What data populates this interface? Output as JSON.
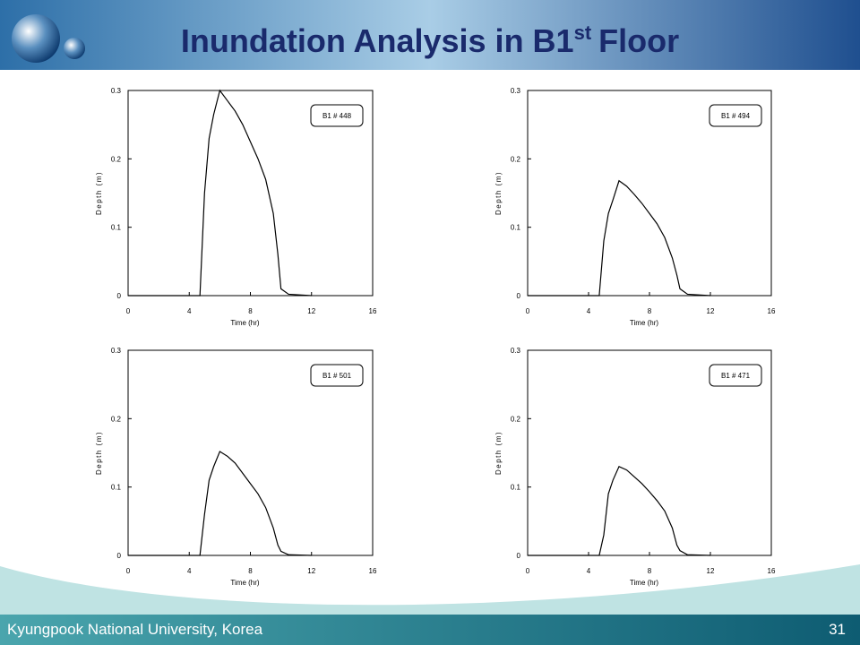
{
  "header": {
    "title": "Inundation Analysis in B1",
    "title_sup": "st",
    "title_end": "Floor"
  },
  "footer": {
    "text": "Kyungpook National University, Korea",
    "page": "31"
  },
  "chart_data": [
    {
      "type": "line",
      "x_label": "Time (hr)",
      "y_label": "Depth (m)",
      "x": [
        0,
        4.7,
        5,
        5.3,
        5.6,
        6,
        6.5,
        7,
        7.5,
        8,
        8.5,
        9,
        9.5,
        9.8,
        10,
        10.5,
        12
      ],
      "series": [
        {
          "name": "B1 # 448",
          "color": "#000000",
          "values": [
            0,
            0,
            0.15,
            0.23,
            0.265,
            0.3,
            0.285,
            0.27,
            0.25,
            0.225,
            0.2,
            0.17,
            0.12,
            0.06,
            0.01,
            0.002,
            0
          ]
        }
      ],
      "xlim": [
        0,
        16
      ],
      "xticks": [
        0,
        4,
        8,
        12,
        16
      ],
      "ylim": [
        0,
        0.3
      ],
      "yticks": [
        0,
        0.1,
        0.2,
        0.3
      ]
    },
    {
      "type": "line",
      "x_label": "Time (hr)",
      "y_label": "Depth (m)",
      "x": [
        0,
        4.7,
        5,
        5.3,
        5.6,
        6,
        6.5,
        7,
        7.5,
        8,
        8.5,
        9,
        9.5,
        9.8,
        10,
        10.5,
        12
      ],
      "series": [
        {
          "name": "B1 # 494",
          "color": "#000000",
          "values": [
            0,
            0,
            0.08,
            0.12,
            0.14,
            0.168,
            0.16,
            0.148,
            0.135,
            0.12,
            0.105,
            0.085,
            0.055,
            0.03,
            0.01,
            0.002,
            0
          ]
        }
      ],
      "xlim": [
        0,
        16
      ],
      "xticks": [
        0,
        4,
        8,
        12,
        16
      ],
      "ylim": [
        0,
        0.3
      ],
      "yticks": [
        0,
        0.1,
        0.2,
        0.3
      ]
    },
    {
      "type": "line",
      "x_label": "Time (hr)",
      "y_label": "Depth (m)",
      "x": [
        0,
        4.7,
        5,
        5.3,
        5.6,
        6,
        6.5,
        7,
        7.5,
        8,
        8.5,
        9,
        9.5,
        9.8,
        10,
        10.5,
        12
      ],
      "series": [
        {
          "name": "B1 # 501",
          "color": "#000000",
          "values": [
            0,
            0,
            0.06,
            0.11,
            0.13,
            0.152,
            0.145,
            0.135,
            0.12,
            0.105,
            0.09,
            0.07,
            0.04,
            0.015,
            0.006,
            0.001,
            0
          ]
        }
      ],
      "xlim": [
        0,
        16
      ],
      "xticks": [
        0,
        4,
        8,
        12,
        16
      ],
      "ylim": [
        0,
        0.3
      ],
      "yticks": [
        0,
        0.1,
        0.2,
        0.3
      ]
    },
    {
      "type": "line",
      "x_label": "Time (hr)",
      "y_label": "Depth (m)",
      "x": [
        0,
        4.7,
        5,
        5.3,
        5.6,
        6,
        6.5,
        7,
        7.5,
        8,
        8.5,
        9,
        9.5,
        9.8,
        10,
        10.5,
        12
      ],
      "series": [
        {
          "name": "B1 # 471",
          "color": "#000000",
          "values": [
            0,
            0,
            0.03,
            0.09,
            0.11,
            0.13,
            0.125,
            0.115,
            0.105,
            0.093,
            0.08,
            0.065,
            0.04,
            0.015,
            0.007,
            0.001,
            0
          ]
        }
      ],
      "xlim": [
        0,
        16
      ],
      "xticks": [
        0,
        4,
        8,
        12,
        16
      ],
      "ylim": [
        0,
        0.3
      ],
      "yticks": [
        0,
        0.1,
        0.2,
        0.3
      ]
    }
  ]
}
